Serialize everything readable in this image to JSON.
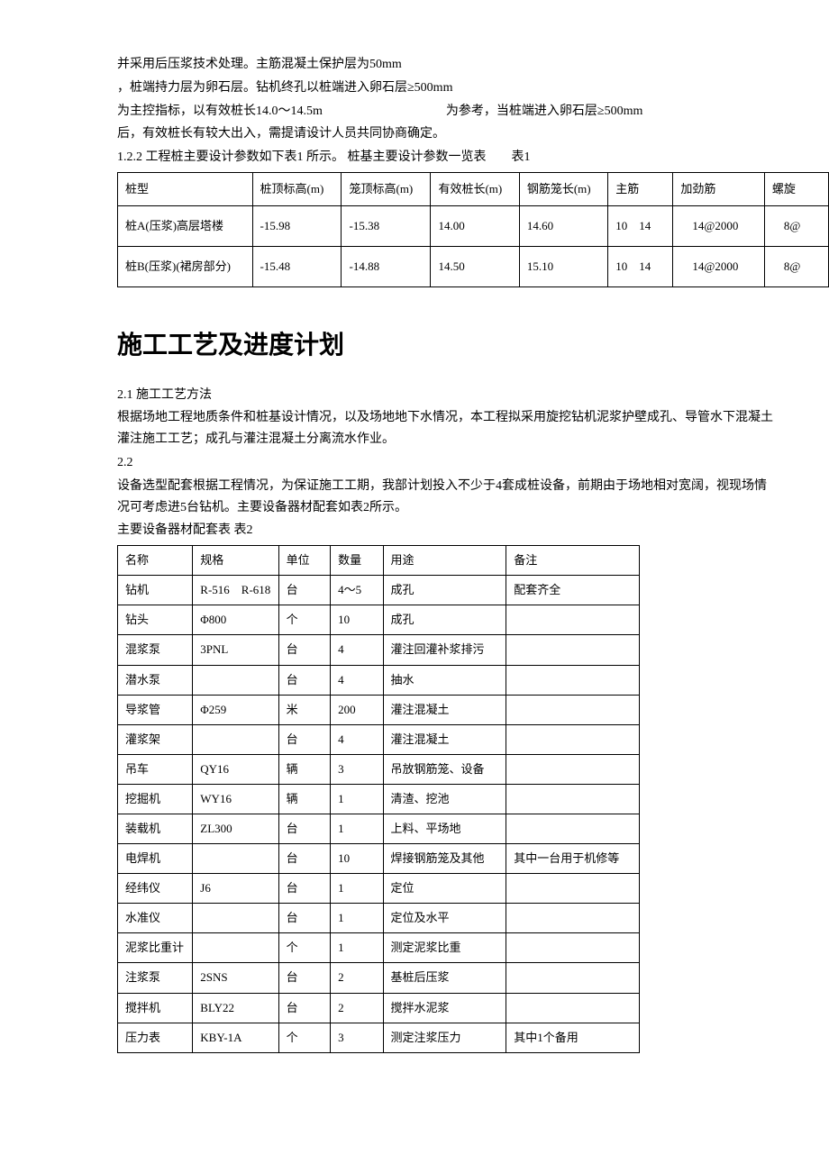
{
  "intro": {
    "line1": "并采用后压浆技术处理。主筋混凝土保护层为50mm",
    "line2": "，桩端持力层为卵石层。钻机终孔以桩端进入卵石层≥500mm",
    "line3a": "为主控指标，以有效桩长14.0～14.5m",
    "line3b": "为参考，当桩端进入卵石层≥500mm",
    "line4": "后，有效桩长有较大出入，需提请设计人员共同协商确定。",
    "line5": "1.2.2 工程桩主要设计参数如下表1 所示。  桩基主要设计参数一览表　　表1"
  },
  "table1": {
    "headers": [
      "桩型",
      "桩顶标高(m)",
      "笼顶标高(m)",
      "有效桩长(m)",
      "钢筋笼长(m)",
      "主筋",
      "加劲筋",
      "螺旋"
    ],
    "rows": [
      [
        "桩A(压浆)高层塔楼",
        "-15.98",
        "-15.38",
        "14.00",
        "14.60",
        "10　14",
        "　14@2000",
        "　8@"
      ],
      [
        "桩B(压浆)(裙房部分)",
        "-15.48",
        "-14.88",
        "14.50",
        "15.10",
        "10　14",
        "　14@2000",
        "　8@"
      ]
    ],
    "col_widths": [
      "150",
      "90",
      "90",
      "90",
      "90",
      "60",
      "90",
      "60"
    ]
  },
  "section2": {
    "title": "施工工艺及进度计划",
    "p1_label": "2.1 施工工艺方法",
    "p1_text": "根据场地工程地质条件和桩基设计情况，以及场地地下水情况，本工程拟采用旋挖钻机泥浆护壁成孔、导管水下混凝土灌注施工工艺；成孔与灌注混凝土分离流水作业。",
    "p2_label": "2.2",
    "p2_text": "设备选型配套根据工程情况，为保证施工工期，我部计划投入不少于4套成桩设备，前期由于场地相对宽阔，视现场情况可考虑进5台钻机。主要设备器材配套如表2所示。",
    "t2_caption": "主要设备器材配套表 表2"
  },
  "table2": {
    "headers": [
      "名称",
      "规格",
      "单位",
      "数量",
      "用途",
      "备注"
    ],
    "rows": [
      [
        "钻机",
        "R-516　R-618",
        "台",
        "4～5",
        "成孔",
        "配套齐全"
      ],
      [
        "钻头",
        "Φ800",
        "个",
        "10",
        "成孔",
        ""
      ],
      [
        "混浆泵",
        "3PNL",
        "台",
        "4",
        "灌注回灌补浆排污",
        ""
      ],
      [
        "潜水泵",
        "",
        "台",
        "4",
        "抽水",
        ""
      ],
      [
        "导浆管",
        "Φ259",
        "米",
        "200",
        "灌注混凝土",
        ""
      ],
      [
        "灌浆架",
        "",
        "台",
        "4",
        "灌注混凝土",
        ""
      ],
      [
        "吊车",
        "QY16",
        "辆",
        "3",
        "吊放钢筋笼、设备",
        ""
      ],
      [
        "挖掘机",
        "WY16",
        "辆",
        "1",
        "清渣、挖池",
        ""
      ],
      [
        "装载机",
        "ZL300",
        "台",
        "1",
        "上料、平场地",
        ""
      ],
      [
        "电焊机",
        "",
        "台",
        "10",
        "焊接钢筋笼及其他",
        "其中一台用于机修等"
      ],
      [
        "经纬仪",
        "J6",
        "台",
        "1",
        "定位",
        ""
      ],
      [
        "水准仪",
        "",
        "台",
        "1",
        "定位及水平",
        ""
      ],
      [
        "泥浆比重计",
        "",
        "个",
        "1",
        "测定泥浆比重",
        ""
      ],
      [
        "注浆泵",
        "2SNS",
        "台",
        "2",
        "基桩后压浆",
        ""
      ],
      [
        "搅拌机",
        "BLY22",
        "台",
        "2",
        "搅拌水泥浆",
        ""
      ],
      [
        "压力表",
        "KBY-1A",
        "个",
        "3",
        "测定注浆压力",
        "其中1个备用"
      ]
    ],
    "col_widths": [
      "75",
      "85",
      "45",
      "45",
      "135",
      "150"
    ]
  }
}
